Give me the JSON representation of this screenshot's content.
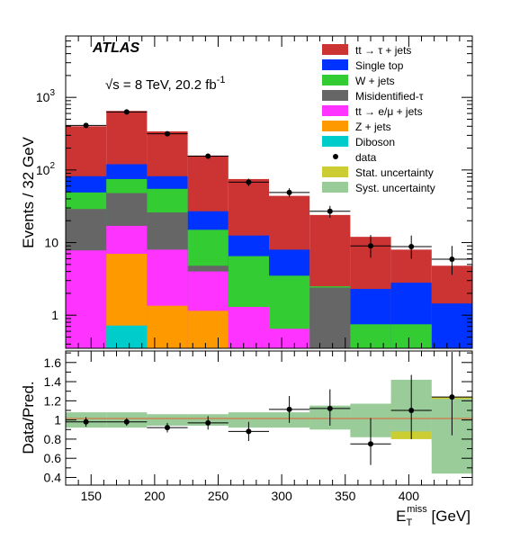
{
  "chart_data": {
    "type": "bar",
    "stacked": true,
    "bin_edges": [
      130,
      162,
      194,
      226,
      258,
      290,
      322,
      354,
      386,
      418,
      450
    ],
    "experiment": "ATLAS",
    "energy_label": "√s = 8 TeV, 20.2 fb",
    "energy_label_sup": "-1",
    "ylabel": "Events / 32 GeV",
    "xlabel": "E",
    "xlabel_sub": "T",
    "xlabel_sup": "miss",
    "xlabel_unit": " [GeV]",
    "ratio_ylabel": "Data/Pred.",
    "xlim": [
      130,
      450
    ],
    "ylim": [
      0.35,
      7000
    ],
    "yscale": "log",
    "ratio_ylim": [
      0.32,
      1.72
    ],
    "x_ticks": [
      "150",
      "200",
      "250",
      "300",
      "350",
      "400"
    ],
    "x_tick_values": [
      150,
      200,
      250,
      300,
      350,
      400
    ],
    "y_ticks": [
      {
        "value": 1,
        "base": "1",
        "exp": ""
      },
      {
        "value": 10,
        "base": "10",
        "exp": ""
      },
      {
        "value": 100,
        "base": "10",
        "exp": "2"
      },
      {
        "value": 1000,
        "base": "10",
        "exp": "3"
      }
    ],
    "ratio_ticks": [
      "0.4",
      "0.6",
      "0.8",
      "1",
      "1.2",
      "1.4",
      "1.6"
    ],
    "ratio_tick_values": [
      0.4,
      0.6,
      0.8,
      1.0,
      1.2,
      1.4,
      1.6
    ],
    "cumulative_stack": [
      {
        "name": "Diboson",
        "color": "#00cccc",
        "tops": [
          0,
          0.72,
          0,
          0,
          0,
          0,
          0,
          0,
          0,
          0
        ]
      },
      {
        "name": "Z + jets",
        "color": "#ff9900",
        "tops": [
          0,
          7.0,
          1.35,
          1.15,
          0,
          0,
          0,
          0,
          0,
          0
        ]
      },
      {
        "name": "tt → e/μ + jets",
        "color": "#ff33ff",
        "tops": [
          7.8,
          17.0,
          8.0,
          4.0,
          1.3,
          0.65,
          0,
          0,
          0,
          0
        ]
      },
      {
        "name": "Misidentified-τ",
        "color": "#666666",
        "tops": [
          29.0,
          48.0,
          26.0,
          4.8,
          0,
          0,
          2.4,
          0,
          0,
          0
        ]
      },
      {
        "name": "W + jets",
        "color": "#33cc33",
        "tops": [
          49.0,
          75.0,
          55.0,
          15.0,
          6.5,
          3.5,
          2.5,
          0.75,
          0.75,
          0
        ]
      },
      {
        "name": "Single top",
        "color": "#0033ff",
        "tops": [
          82.0,
          120.0,
          82.0,
          27.0,
          12.5,
          8.0,
          0,
          2.3,
          2.8,
          1.45
        ]
      },
      {
        "name": "tt → τ + jets",
        "color": "#cc3333",
        "tops": [
          400.0,
          650.0,
          340.0,
          158.0,
          75.0,
          44.0,
          24.0,
          12.0,
          8.0,
          4.8
        ]
      }
    ],
    "data": {
      "name": "data",
      "x": [
        146,
        178,
        210,
        242,
        274,
        306,
        338,
        370,
        402,
        434
      ],
      "y": [
        410,
        630,
        315,
        155,
        68,
        49,
        27,
        9.0,
        8.8,
        5.9
      ],
      "y_err_low": [
        20,
        25,
        18,
        12,
        8,
        7,
        5,
        2.8,
        2.8,
        2.3
      ],
      "y_err_high": [
        20,
        25,
        18,
        12,
        8,
        7,
        5,
        3.7,
        3.7,
        3.1
      ]
    },
    "ratio": {
      "values": [
        0.98,
        0.98,
        0.92,
        0.97,
        0.88,
        1.11,
        1.12,
        0.75,
        1.1,
        1.24
      ],
      "err_low": [
        0.05,
        0.04,
        0.05,
        0.07,
        0.1,
        0.14,
        0.18,
        0.22,
        0.3,
        0.4
      ],
      "err_high": [
        0.05,
        0.04,
        0.05,
        0.07,
        0.1,
        0.14,
        0.2,
        0.27,
        0.37,
        0.47
      ],
      "stat_band": [
        [
          0.98,
          1.02
        ],
        [
          0.98,
          1.02
        ],
        [
          0.97,
          1.03
        ],
        [
          0.96,
          1.04
        ],
        [
          0.95,
          1.05
        ],
        [
          0.94,
          1.06
        ],
        [
          0.93,
          1.07
        ],
        [
          0.86,
          1.14
        ],
        [
          0.8,
          1.2
        ],
        [
          0.76,
          1.24
        ]
      ],
      "syst_band": [
        [
          0.92,
          1.08
        ],
        [
          0.92,
          1.08
        ],
        [
          0.94,
          1.06
        ],
        [
          0.94,
          1.06
        ],
        [
          0.92,
          1.08
        ],
        [
          0.92,
          1.08
        ],
        [
          0.9,
          1.15
        ],
        [
          0.82,
          1.17
        ],
        [
          0.88,
          1.42
        ],
        [
          0.44,
          1.22
        ]
      ]
    },
    "legend": {
      "placement": "top-right",
      "entries": [
        {
          "label": "tt → τ + jets",
          "kind": "fill",
          "color": "#cc3333"
        },
        {
          "label": "Single top",
          "kind": "fill",
          "color": "#0033ff"
        },
        {
          "label": "W + jets",
          "kind": "fill",
          "color": "#33cc33"
        },
        {
          "label": "Misidentified-τ",
          "kind": "fill",
          "color": "#666666"
        },
        {
          "label": "tt → e/μ + jets",
          "kind": "fill",
          "color": "#ff33ff"
        },
        {
          "label": "Z + jets",
          "kind": "fill",
          "color": "#ff9900"
        },
        {
          "label": "Diboson",
          "kind": "fill",
          "color": "#00cccc"
        },
        {
          "label": "data",
          "kind": "marker",
          "color": "#000000"
        },
        {
          "label": "Stat. uncertainty",
          "kind": "fill",
          "color": "#cccc33"
        },
        {
          "label": "Syst. uncertainty",
          "kind": "fill",
          "color": "#99cc99"
        }
      ]
    }
  }
}
